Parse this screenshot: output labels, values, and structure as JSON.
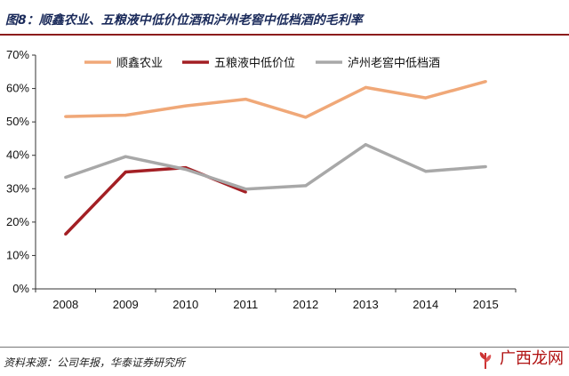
{
  "header": {
    "title": "图8：顺鑫农业、五粮液中低价位酒和泸州老窖中低档酒的毛利率"
  },
  "chart_data": {
    "type": "line",
    "categories": [
      "2008",
      "2009",
      "2010",
      "2011",
      "2012",
      "2013",
      "2014",
      "2015"
    ],
    "series": [
      {
        "name": "顺鑫农业",
        "color": "#f0a878",
        "values": [
          51.6,
          52,
          54.8,
          56.8,
          51.4,
          60.3,
          57.2,
          62.1
        ]
      },
      {
        "name": "五粮液中低价位",
        "color": "#a31f24",
        "values": [
          16.4,
          35,
          36.3,
          29,
          null,
          null,
          null,
          null
        ]
      },
      {
        "name": "泸州老窖中低档酒",
        "color": "#a8a8a8",
        "values": [
          33.4,
          39.6,
          35.8,
          29.9,
          30.9,
          43.2,
          35.2,
          36.6
        ]
      }
    ],
    "yticks": [
      "0%",
      "10%",
      "20%",
      "30%",
      "40%",
      "50%",
      "60%",
      "70%"
    ],
    "ylim": [
      0,
      70
    ],
    "legend": "top",
    "grid": false
  },
  "footer": {
    "source": "资料来源：公司年报，华泰证券研究所"
  },
  "watermark": {
    "text": "广西龙网",
    "icon": "plant-logo-icon"
  }
}
